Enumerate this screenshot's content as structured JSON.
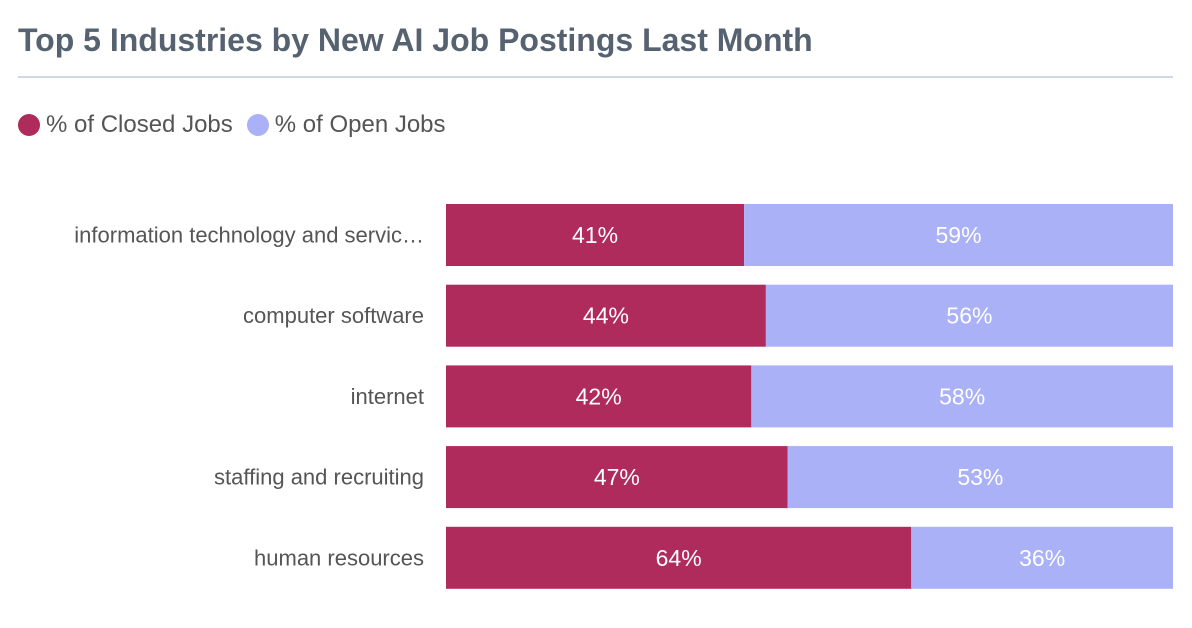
{
  "chart_data": {
    "type": "bar",
    "orientation": "horizontal",
    "stacked": true,
    "title": "Top 5 Industries by New AI Job Postings Last Month",
    "xlabel": "",
    "ylabel": "",
    "xlim": [
      0,
      100
    ],
    "grid": false,
    "legend_position": "top-left",
    "categories": [
      "information technology and servic…",
      "computer software",
      "internet",
      "staffing and recruiting",
      "human resources"
    ],
    "series": [
      {
        "name": "% of Closed Jobs",
        "color": "#ae2b5b",
        "values": [
          41,
          44,
          42,
          47,
          64
        ],
        "labels": [
          "41%",
          "44%",
          "42%",
          "47%",
          "64%"
        ]
      },
      {
        "name": "% of Open Jobs",
        "color": "#aab1f6",
        "values": [
          59,
          56,
          58,
          53,
          36
        ],
        "labels": [
          "59%",
          "56%",
          "58%",
          "53%",
          "36%"
        ]
      }
    ]
  }
}
